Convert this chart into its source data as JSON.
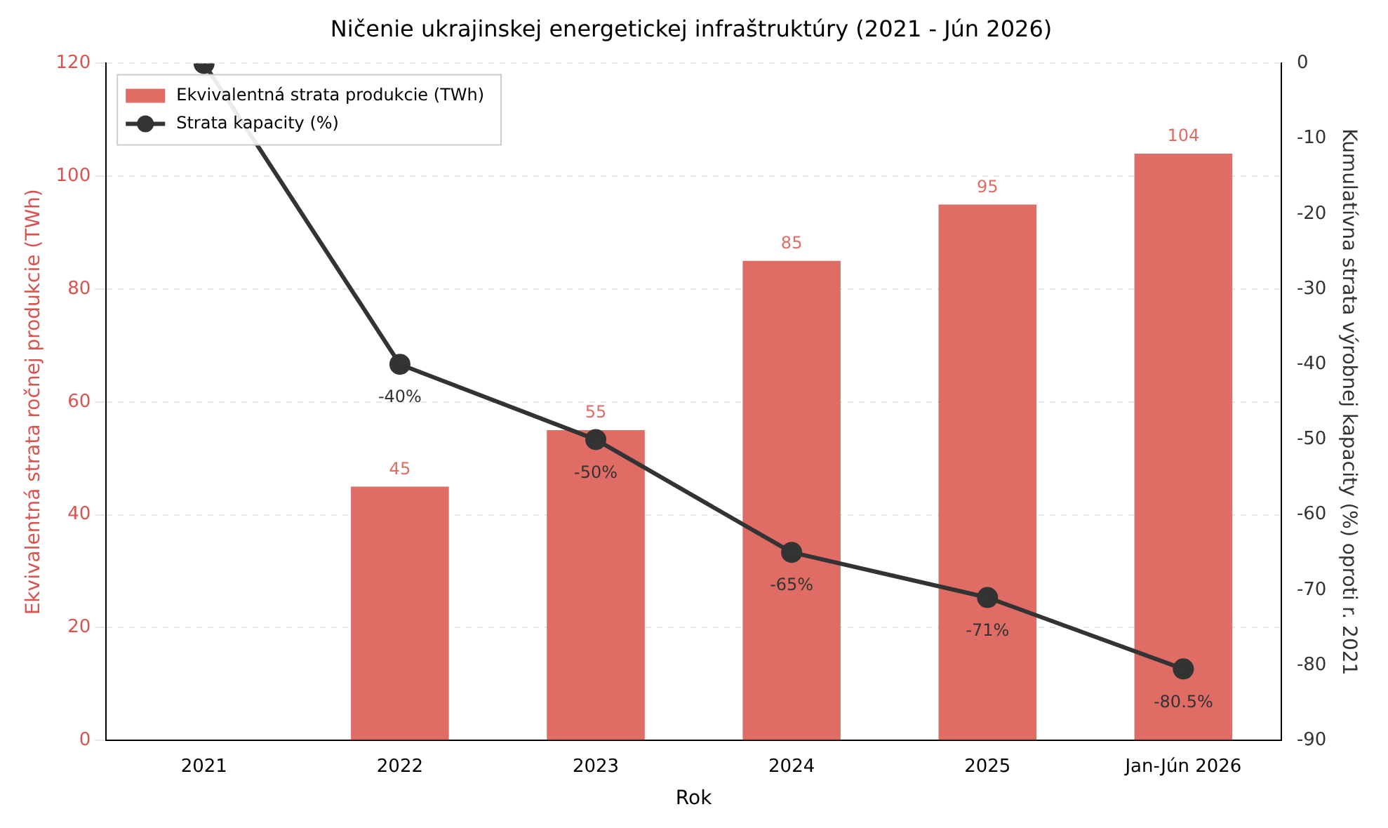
{
  "chart_data": {
    "type": "bar",
    "title": "Ničenie ukrajinskej energetickej infraštruktúry (2021 - Jún 2026)",
    "xlabel": "Rok",
    "ylabel": "Ekvivalentná strata ročnej produkcie (TWh)",
    "y2label": "Kumulatívna strata výrobnej kapacity (%) oproti r. 2021",
    "categories": [
      "2021",
      "2022",
      "2023",
      "2024",
      "2025",
      "Jan-Jún 2026"
    ],
    "series": [
      {
        "name": "Ekvivalentná strata produkcie (TWh)",
        "color": "#e06c66",
        "values": [
          null,
          45,
          55,
          85,
          95,
          104
        ],
        "value_labels": [
          null,
          "45",
          "55",
          "85",
          "95",
          "104"
        ]
      },
      {
        "name": "Strata kapacity (%)",
        "type": "line",
        "axis": "y2",
        "color": "#333333",
        "values": [
          0,
          -40,
          -50,
          -65,
          -71,
          -80.5
        ],
        "value_labels": [
          null,
          "-40%",
          "-50%",
          "-65%",
          "-71%",
          "-80.5%"
        ]
      }
    ],
    "ylim": [
      0,
      120
    ],
    "yticks": [
      0,
      20,
      40,
      60,
      80,
      100,
      120
    ],
    "y2lim": [
      -90,
      0
    ],
    "y2ticks": [
      -90,
      -80,
      -70,
      -60,
      -50,
      -40,
      -30,
      -20,
      -10,
      0
    ],
    "grid": "y",
    "legend": "top left",
    "marker": "circle",
    "line_style": "solid"
  }
}
